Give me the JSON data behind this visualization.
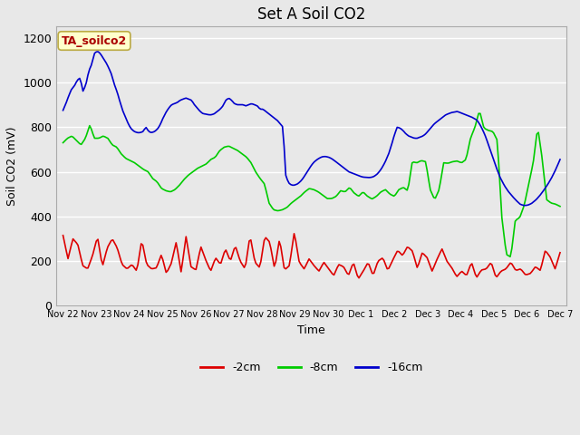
{
  "title": "Set A Soil CO2",
  "xlabel": "Time",
  "ylabel": "Soil CO2 (mV)",
  "ylim": [
    0,
    1250
  ],
  "yticks": [
    0,
    200,
    400,
    600,
    800,
    1000,
    1200
  ],
  "xtick_labels": [
    "Nov 22",
    "Nov 23",
    "Nov 24",
    "Nov 25",
    "Nov 26",
    "Nov 27",
    "Nov 28",
    "Nov 29",
    "Nov 30",
    "Dec 1",
    "Dec 2",
    "Dec 3",
    "Dec 4",
    "Dec 5",
    "Dec 6",
    "Dec 7"
  ],
  "annotation_text": "TA_soilco2",
  "annotation_bgcolor": "#ffffcc",
  "annotation_edgecolor": "#bbaa44",
  "annotation_textcolor": "#aa0000",
  "line_colors": [
    "#dd0000",
    "#00cc00",
    "#0000cc"
  ],
  "line_labels": [
    "-2cm",
    "-8cm",
    "-16cm"
  ],
  "fig_facecolor": "#e8e8e8",
  "plot_bg_color": "#e8e8e8",
  "grid_color": "#ffffff",
  "title_fontsize": 12,
  "red_data": [
    315,
    210,
    300,
    275,
    180,
    165,
    225,
    310,
    175,
    260,
    300,
    260,
    185,
    165,
    185,
    155,
    295,
    185,
    165,
    170,
    230,
    145,
    190,
    285,
    150,
    310,
    175,
    160,
    265,
    205,
    155,
    215,
    185,
    255,
    200,
    270,
    200,
    165,
    315,
    195,
    170,
    310,
    285,
    165,
    300,
    160,
    180,
    330,
    195,
    165,
    210,
    180,
    155,
    195,
    165,
    135,
    185,
    175,
    135,
    195,
    120,
    155,
    195,
    135,
    200,
    215,
    158,
    205,
    248,
    225,
    265,
    245,
    168,
    238,
    215,
    155,
    208,
    255,
    200,
    170,
    130,
    155,
    135,
    195,
    125,
    160,
    165,
    195,
    125,
    155,
    165,
    195,
    158,
    165,
    138,
    145,
    175,
    158,
    248,
    218,
    165,
    238
  ],
  "green_data": [
    730,
    750,
    760,
    740,
    720,
    750,
    810,
    750,
    750,
    760,
    750,
    720,
    710,
    680,
    660,
    650,
    640,
    625,
    610,
    600,
    570,
    555,
    525,
    515,
    510,
    520,
    540,
    565,
    585,
    600,
    615,
    625,
    635,
    655,
    665,
    695,
    710,
    715,
    705,
    695,
    680,
    665,
    640,
    600,
    570,
    545,
    460,
    430,
    425,
    430,
    440,
    460,
    475,
    490,
    510,
    525,
    520,
    510,
    495,
    480,
    480,
    490,
    515,
    510,
    530,
    505,
    490,
    510,
    490,
    478,
    490,
    510,
    520,
    500,
    490,
    520,
    530,
    515,
    645,
    640,
    650,
    645,
    520,
    475,
    520,
    640,
    638,
    645,
    648,
    640,
    655,
    750,
    800,
    875,
    795,
    785,
    780,
    740,
    395,
    230,
    218,
    382,
    395,
    450,
    545,
    640,
    800,
    660,
    475,
    460,
    455,
    445
  ],
  "blue_data": [
    875,
    905,
    940,
    970,
    985,
    1010,
    1020,
    960,
    990,
    1050,
    1080,
    1130,
    1140,
    1130,
    1110,
    1090,
    1065,
    1035,
    990,
    955,
    910,
    870,
    840,
    810,
    790,
    780,
    775,
    775,
    780,
    800,
    780,
    775,
    780,
    790,
    810,
    840,
    865,
    885,
    900,
    905,
    910,
    920,
    925,
    930,
    925,
    920,
    900,
    885,
    870,
    860,
    858,
    855,
    855,
    860,
    870,
    880,
    895,
    920,
    930,
    920,
    905,
    900,
    900,
    900,
    895,
    900,
    905,
    900,
    895,
    880,
    880,
    870,
    860,
    850,
    840,
    830,
    815,
    800,
    580,
    550,
    540,
    540,
    545,
    555,
    570,
    590,
    610,
    630,
    645,
    655,
    663,
    668,
    668,
    665,
    659,
    650,
    640,
    630,
    620,
    610,
    600,
    595,
    590,
    585,
    580,
    576,
    575,
    574,
    575,
    580,
    590,
    605,
    625,
    650,
    680,
    720,
    765,
    800,
    795,
    785,
    770,
    760,
    755,
    750,
    750,
    755,
    760,
    770,
    785,
    800,
    815,
    825,
    835,
    845,
    855,
    860,
    865,
    867,
    870,
    865,
    860,
    855,
    850,
    845,
    838,
    830,
    810,
    785,
    755,
    718,
    680,
    643,
    608,
    575,
    550,
    528,
    510,
    495,
    480,
    467,
    455,
    450,
    449,
    452,
    458,
    468,
    480,
    495,
    512,
    530,
    550,
    572,
    597,
    625,
    655
  ]
}
